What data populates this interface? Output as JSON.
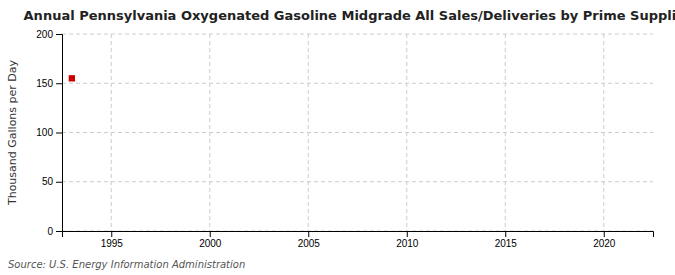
{
  "chart_data": {
    "type": "scatter",
    "title": "Annual Pennsylvania Oxygenated Gasoline Midgrade All Sales/Deliveries by Prime Supplier",
    "ylabel": "Thousand Gallons per Day",
    "source": "Source: U.S. Energy Information Administration",
    "x": [
      1993
    ],
    "values": [
      155
    ],
    "color": "#cc0000",
    "marker": "square",
    "xlim": [
      1992.5,
      2022.5
    ],
    "ylim": [
      0,
      200
    ],
    "xticks": [
      1995,
      2000,
      2005,
      2010,
      2015,
      2020
    ],
    "yticks": [
      0,
      50,
      100,
      150,
      200
    ],
    "grid": true
  }
}
